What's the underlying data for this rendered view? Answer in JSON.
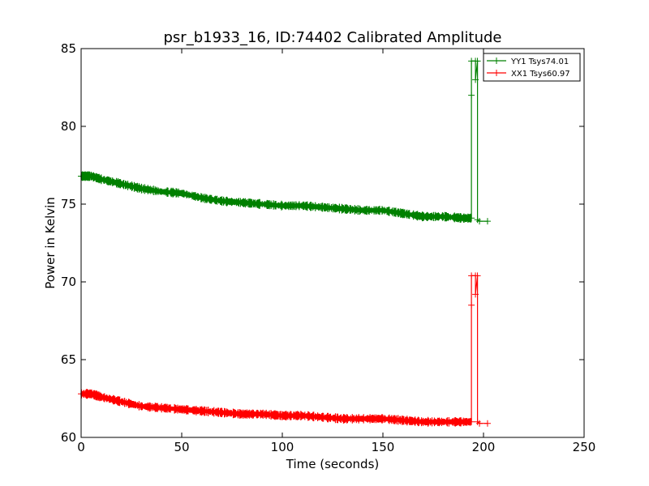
{
  "chart_data": {
    "type": "line",
    "title": "psr_b1933_16, ID:74402 Calibrated Amplitude",
    "xlabel": "Time (seconds)",
    "ylabel": "Power in Kelvin",
    "xlim": [
      0,
      250
    ],
    "ylim": [
      60,
      85
    ],
    "xticks": [
      0,
      50,
      100,
      150,
      200,
      250
    ],
    "yticks": [
      60,
      65,
      70,
      75,
      80,
      85
    ],
    "xtick_labels": [
      "0",
      "50",
      "100",
      "150",
      "200",
      "250"
    ],
    "ytick_labels": [
      "60",
      "65",
      "70",
      "75",
      "80",
      "85"
    ],
    "grid": false,
    "legend_position": "top-right",
    "series": [
      {
        "name": "YY1 Tsys74.01",
        "color": "#008000",
        "marker": "+",
        "points": [
          [
            0,
            76.8
          ],
          [
            5,
            76.8
          ],
          [
            10,
            76.6
          ],
          [
            20,
            76.3
          ],
          [
            30,
            76.0
          ],
          [
            40,
            75.8
          ],
          [
            50,
            75.7
          ],
          [
            60,
            75.4
          ],
          [
            70,
            75.2
          ],
          [
            80,
            75.1
          ],
          [
            90,
            75.0
          ],
          [
            100,
            74.9
          ],
          [
            110,
            74.9
          ],
          [
            120,
            74.8
          ],
          [
            130,
            74.7
          ],
          [
            140,
            74.6
          ],
          [
            150,
            74.6
          ],
          [
            160,
            74.4
          ],
          [
            170,
            74.2
          ],
          [
            180,
            74.2
          ],
          [
            190,
            74.1
          ],
          [
            194,
            74.1
          ],
          [
            194,
            82.0
          ],
          [
            194,
            84.2
          ],
          [
            196,
            84.2
          ],
          [
            196,
            83.0
          ],
          [
            197,
            84.2
          ],
          [
            197,
            74.0
          ],
          [
            198,
            73.9
          ],
          [
            202,
            73.9
          ]
        ]
      },
      {
        "name": "XX1 Tsys60.97",
        "color": "#ff0000",
        "marker": "+",
        "points": [
          [
            0,
            62.8
          ],
          [
            5,
            62.8
          ],
          [
            10,
            62.6
          ],
          [
            20,
            62.3
          ],
          [
            30,
            62.0
          ],
          [
            40,
            61.9
          ],
          [
            50,
            61.8
          ],
          [
            60,
            61.7
          ],
          [
            70,
            61.6
          ],
          [
            80,
            61.5
          ],
          [
            90,
            61.5
          ],
          [
            100,
            61.4
          ],
          [
            110,
            61.4
          ],
          [
            120,
            61.3
          ],
          [
            130,
            61.2
          ],
          [
            140,
            61.2
          ],
          [
            150,
            61.2
          ],
          [
            160,
            61.1
          ],
          [
            170,
            61.0
          ],
          [
            180,
            61.0
          ],
          [
            190,
            61.0
          ],
          [
            194,
            61.0
          ],
          [
            194,
            68.5
          ],
          [
            194,
            70.4
          ],
          [
            196,
            70.4
          ],
          [
            196,
            69.2
          ],
          [
            197,
            70.4
          ],
          [
            197,
            61.0
          ],
          [
            198,
            60.9
          ],
          [
            202,
            60.9
          ]
        ]
      }
    ]
  }
}
